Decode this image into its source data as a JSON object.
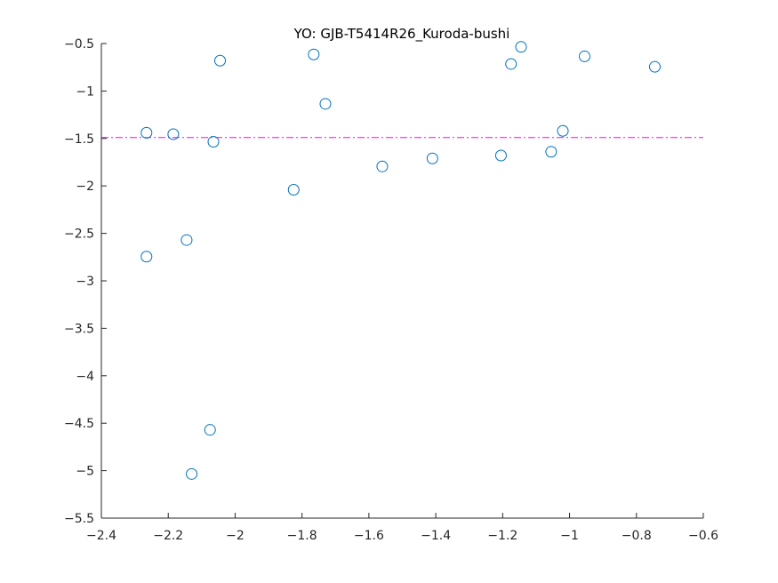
{
  "chart_data": {
    "type": "scatter",
    "title": "YO: GJB-T5414R26_Kuroda-bushi",
    "xlabel": "",
    "ylabel": "",
    "xlim": [
      -2.4,
      -0.6
    ],
    "ylim": [
      -5.5,
      -0.5
    ],
    "xticks": [
      -2.4,
      -2.2,
      -2.0,
      -1.8,
      -1.6,
      -1.4,
      -1.2,
      -1.0,
      -0.8,
      -0.6
    ],
    "xtick_labels": [
      "−2.4",
      "−2.2",
      "−2",
      "−1.8",
      "−1.6",
      "−1.4",
      "−1.2",
      "−1",
      "−0.8",
      "−0.6"
    ],
    "yticks": [
      -0.5,
      -1.0,
      -1.5,
      -2.0,
      -2.5,
      -3.0,
      -3.5,
      -4.0,
      -4.5,
      -5.0,
      -5.5
    ],
    "ytick_labels": [
      "−0.5",
      "−1",
      "−1.5",
      "−2",
      "−2.5",
      "−3",
      "−3.5",
      "−4",
      "−4.5",
      "−5",
      "−5.5"
    ],
    "grid": false,
    "marker_color": "#0072bd",
    "reference_line": {
      "y": -1.49,
      "color": "#ff00ff",
      "style": "dash-dot"
    },
    "series": [
      {
        "points": [
          {
            "x": -2.265,
            "y": -1.44
          },
          {
            "x": -2.185,
            "y": -1.455
          },
          {
            "x": -2.265,
            "y": -2.745
          },
          {
            "x": -2.145,
            "y": -2.57
          },
          {
            "x": -2.13,
            "y": -5.035
          },
          {
            "x": -2.075,
            "y": -4.57
          },
          {
            "x": -2.065,
            "y": -1.535
          },
          {
            "x": -2.045,
            "y": -0.68
          },
          {
            "x": -1.825,
            "y": -2.04
          },
          {
            "x": -1.765,
            "y": -0.615
          },
          {
            "x": -1.73,
            "y": -1.135
          },
          {
            "x": -1.56,
            "y": -1.795
          },
          {
            "x": -1.41,
            "y": -1.71
          },
          {
            "x": -1.205,
            "y": -1.68
          },
          {
            "x": -1.175,
            "y": -0.715
          },
          {
            "x": -1.145,
            "y": -0.535
          },
          {
            "x": -1.055,
            "y": -1.64
          },
          {
            "x": -1.02,
            "y": -1.42
          },
          {
            "x": -0.955,
            "y": -0.635
          },
          {
            "x": -0.745,
            "y": -0.745
          }
        ]
      }
    ]
  }
}
